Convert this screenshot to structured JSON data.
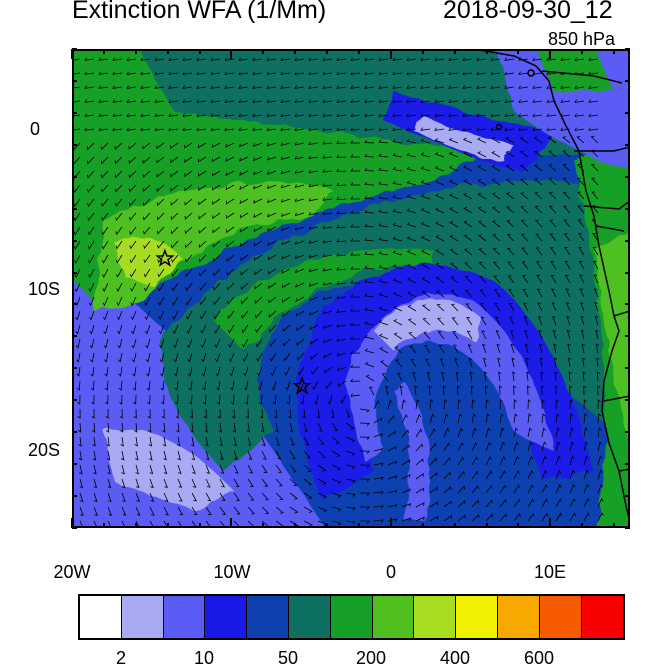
{
  "header": {
    "title": "Extinction WFA (1/Mm)",
    "datetime": "2018-09-30_12",
    "level": "850 hPa"
  },
  "map": {
    "lat_labels": [
      "0",
      "10S",
      "20S"
    ],
    "lon_labels": [
      "20W",
      "10W",
      "0",
      "10E"
    ],
    "markers": [
      {
        "name": "star-marker-north",
        "lon": -14.3,
        "lat": -8.0
      },
      {
        "name": "star-marker-south",
        "lon": -5.7,
        "lat": -16.0
      }
    ],
    "extent": {
      "lon": [
        -20,
        15
      ],
      "lat": [
        -25,
        5
      ]
    }
  },
  "colorbar": {
    "colors": [
      "#ffffff",
      "#a8aaf4",
      "#5a5cf4",
      "#1a1ae8",
      "#1040b0",
      "#0e7060",
      "#14a028",
      "#50c020",
      "#a8dc20",
      "#f0f000",
      "#f8a800",
      "#f85a00",
      "#f80000"
    ],
    "labels": [
      "2",
      "10",
      "50",
      "200",
      "400",
      "600"
    ]
  }
}
